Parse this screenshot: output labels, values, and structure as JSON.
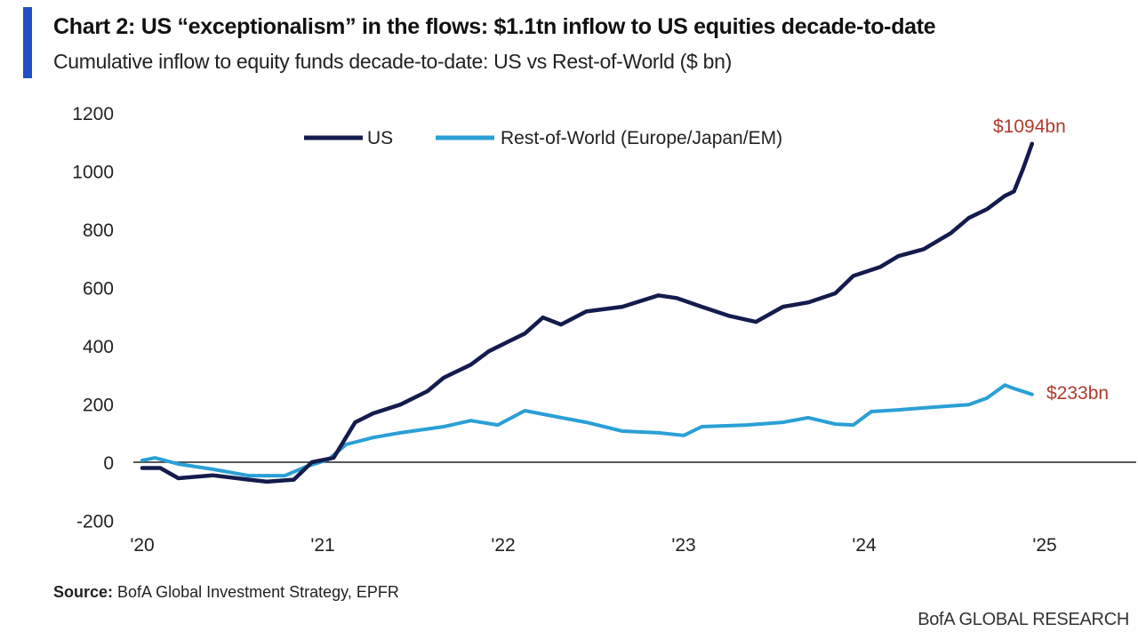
{
  "header": {
    "title": "Chart 2: US “exceptionalism” in the flows: $1.1tn inflow to US equities decade-to-date",
    "subtitle": "Cumulative inflow to equity funds decade-to-date: US vs Rest-of-World ($ bn)"
  },
  "footer": {
    "source_label": "Source:",
    "source_text": " BofA Global Investment Strategy, EPFR",
    "brand": "BofA GLOBAL RESEARCH"
  },
  "colors": {
    "accent": "#1f4fc4",
    "us": "#141b4d",
    "row": "#2a9fd6",
    "annotation": "#b03a2e"
  },
  "chart_data": {
    "type": "line",
    "title": "Chart 2: US “exceptionalism” in the flows: $1.1tn inflow to US equities decade-to-date",
    "subtitle": "Cumulative inflow to equity funds decade-to-date: US vs Rest-of-World ($ bn)",
    "xlabel": "",
    "ylabel": "",
    "xlim": [
      2020,
      2025.5
    ],
    "ylim": [
      -200,
      1200
    ],
    "x_ticks": [
      2020,
      2021,
      2022,
      2023,
      2024,
      2025
    ],
    "x_tick_labels": [
      "'20",
      "'21",
      "'22",
      "'23",
      "'24",
      "'25"
    ],
    "y_ticks": [
      -200,
      0,
      200,
      400,
      600,
      800,
      1000,
      1200
    ],
    "y_tick_labels": [
      "-200",
      "0",
      "200",
      "400",
      "600",
      "800",
      "1000",
      "1200"
    ],
    "grid": false,
    "legend_position": "top-center",
    "series": [
      {
        "name": "US",
        "color": "#141b4d",
        "end_label": "$1094bn",
        "points": [
          [
            2020.0,
            -20
          ],
          [
            2020.1,
            -20
          ],
          [
            2020.2,
            -55
          ],
          [
            2020.39,
            -45
          ],
          [
            2020.59,
            -60
          ],
          [
            2020.69,
            -67
          ],
          [
            2020.84,
            -60
          ],
          [
            2020.94,
            0
          ],
          [
            2021.06,
            15
          ],
          [
            2021.18,
            137
          ],
          [
            2021.28,
            168
          ],
          [
            2021.43,
            198
          ],
          [
            2021.58,
            244
          ],
          [
            2021.67,
            290
          ],
          [
            2021.82,
            335
          ],
          [
            2021.92,
            381
          ],
          [
            2022.02,
            412
          ],
          [
            2022.12,
            442
          ],
          [
            2022.22,
            497
          ],
          [
            2022.32,
            473
          ],
          [
            2022.46,
            518
          ],
          [
            2022.66,
            534
          ],
          [
            2022.86,
            573
          ],
          [
            2022.96,
            564
          ],
          [
            2023.1,
            534
          ],
          [
            2023.25,
            503
          ],
          [
            2023.4,
            482
          ],
          [
            2023.55,
            534
          ],
          [
            2023.69,
            549
          ],
          [
            2023.84,
            580
          ],
          [
            2023.94,
            640
          ],
          [
            2024.09,
            671
          ],
          [
            2024.19,
            708
          ],
          [
            2024.33,
            732
          ],
          [
            2024.48,
            787
          ],
          [
            2024.58,
            839
          ],
          [
            2024.68,
            869
          ],
          [
            2024.78,
            915
          ],
          [
            2024.83,
            930
          ],
          [
            2024.88,
            1007
          ],
          [
            2024.93,
            1094
          ]
        ]
      },
      {
        "name": "Rest-of-World (Europe/Japan/EM)",
        "color": "#2a9fd6",
        "end_label": "$233bn",
        "points": [
          [
            2020.0,
            6
          ],
          [
            2020.07,
            15
          ],
          [
            2020.2,
            -6
          ],
          [
            2020.39,
            -24
          ],
          [
            2020.59,
            -46
          ],
          [
            2020.79,
            -46
          ],
          [
            2020.91,
            -15
          ],
          [
            2021.03,
            9
          ],
          [
            2021.13,
            61
          ],
          [
            2021.28,
            85
          ],
          [
            2021.43,
            101
          ],
          [
            2021.67,
            122
          ],
          [
            2021.82,
            143
          ],
          [
            2021.97,
            128
          ],
          [
            2022.12,
            177
          ],
          [
            2022.27,
            159
          ],
          [
            2022.46,
            137
          ],
          [
            2022.66,
            107
          ],
          [
            2022.86,
            101
          ],
          [
            2023.0,
            92
          ],
          [
            2023.1,
            122
          ],
          [
            2023.35,
            128
          ],
          [
            2023.55,
            137
          ],
          [
            2023.69,
            153
          ],
          [
            2023.84,
            131
          ],
          [
            2023.94,
            128
          ],
          [
            2024.04,
            174
          ],
          [
            2024.19,
            180
          ],
          [
            2024.38,
            189
          ],
          [
            2024.58,
            198
          ],
          [
            2024.68,
            220
          ],
          [
            2024.78,
            265
          ],
          [
            2024.83,
            253
          ],
          [
            2024.93,
            233
          ]
        ]
      }
    ]
  }
}
